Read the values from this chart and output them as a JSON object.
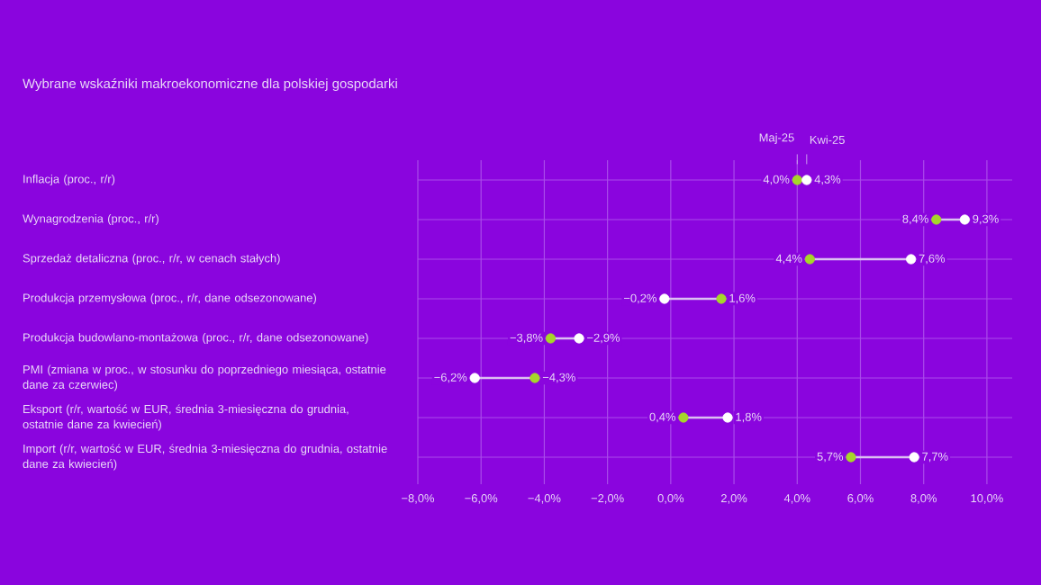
{
  "chart_data": {
    "type": "scatter",
    "orientation": "horizontal",
    "title": "Wybrane wskaźniki makroekonomiczne dla polskiej gospodarki",
    "categories": [
      "Inflacja (proc., r/r)",
      "Wynagrodzenia (proc., r/r)",
      "Sprzedaż detaliczna (proc., r/r, w cenach stałych)",
      "Produkcja przemysłowa (proc., r/r, dane odsezonowane)",
      "Produkcja budowlano-montażowa (proc., r/r, dane odsezonowane)",
      "PMI (zmiana w proc., w stosunku do poprzedniego miesiąca, ostatnie dane za czerwiec)",
      "Eksport (r/r, wartość w EUR, średnia 3-miesięczna do grudnia, ostatnie dane za kwiecień)",
      "Import (r/r, wartość w EUR, średnia 3-miesięczna do grudnia, ostatnie dane za kwiecień)"
    ],
    "series": [
      {
        "name": "Maj-25",
        "color": "#a6d62a",
        "values": [
          4.0,
          8.4,
          4.4,
          1.6,
          -3.8,
          -4.3,
          0.4,
          5.7
        ],
        "value_labels": [
          "4,0%",
          "8,4%",
          "4,4%",
          "1,6%",
          "−3,8%",
          "−4,3%",
          "0,4%",
          "5,7%"
        ]
      },
      {
        "name": "Kwi-25",
        "color": "#ffffff",
        "values": [
          4.3,
          9.3,
          7.6,
          -0.2,
          -2.9,
          -6.2,
          1.8,
          7.7
        ],
        "value_labels": [
          "4,3%",
          "9,3%",
          "7,6%",
          "−0,2%",
          "−2,9%",
          "−6,2%",
          "1,8%",
          "7,7%"
        ]
      }
    ],
    "xlim": [
      -8,
      10.8
    ],
    "xticks": [
      {
        "value": -8,
        "label": "−8,0%"
      },
      {
        "value": -6,
        "label": "−6,0%"
      },
      {
        "value": -4,
        "label": "−4,0%"
      },
      {
        "value": -2,
        "label": "−2,0%"
      },
      {
        "value": 0,
        "label": "0,0%"
      },
      {
        "value": 2,
        "label": "2,0%"
      },
      {
        "value": 4,
        "label": "4,0%"
      },
      {
        "value": 6,
        "label": "6,0%"
      },
      {
        "value": 8,
        "label": "8,0%"
      },
      {
        "value": 10,
        "label": "10,0%"
      }
    ],
    "grid": true,
    "legend": "top",
    "marker": "circle"
  }
}
